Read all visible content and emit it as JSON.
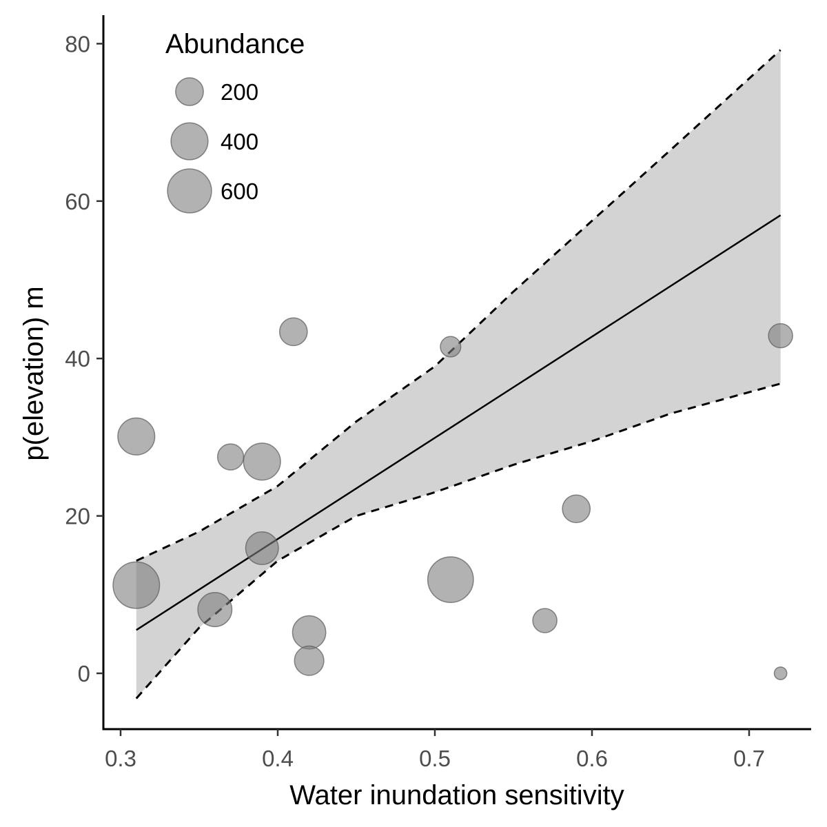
{
  "chart_data": {
    "type": "scatter",
    "xlabel": "Water inundation sensitivity",
    "ylabel": "p(elevation) m",
    "xlim": [
      0.29,
      0.74
    ],
    "ylim": [
      -7,
      84
    ],
    "x_ticks": [
      0.3,
      0.4,
      0.5,
      0.6,
      0.7
    ],
    "x_tick_labels": [
      "0.3",
      "0.4",
      "0.5",
      "0.6",
      "0.7"
    ],
    "y_ticks": [
      0,
      20,
      40,
      60,
      80
    ],
    "y_tick_labels": [
      "0",
      "20",
      "40",
      "60",
      "80"
    ],
    "legend": {
      "title": "Abundance",
      "position": "top-left",
      "entries": [
        {
          "label": "200",
          "size": 200
        },
        {
          "label": "400",
          "size": 400
        },
        {
          "label": "600",
          "size": 600
        }
      ]
    },
    "points": [
      {
        "x": 0.31,
        "y": 30.1,
        "size": 400
      },
      {
        "x": 0.31,
        "y": 11.2,
        "size": 680
      },
      {
        "x": 0.36,
        "y": 8.1,
        "size": 330
      },
      {
        "x": 0.37,
        "y": 27.5,
        "size": 170
      },
      {
        "x": 0.39,
        "y": 26.9,
        "size": 400
      },
      {
        "x": 0.39,
        "y": 15.9,
        "size": 300
      },
      {
        "x": 0.41,
        "y": 43.4,
        "size": 200
      },
      {
        "x": 0.42,
        "y": 5.2,
        "size": 310
      },
      {
        "x": 0.42,
        "y": 1.6,
        "size": 230
      },
      {
        "x": 0.51,
        "y": 41.5,
        "size": 90
      },
      {
        "x": 0.51,
        "y": 11.9,
        "size": 650
      },
      {
        "x": 0.57,
        "y": 6.7,
        "size": 140
      },
      {
        "x": 0.59,
        "y": 20.9,
        "size": 200
      },
      {
        "x": 0.72,
        "y": 42.9,
        "size": 140
      },
      {
        "x": 0.72,
        "y": 0.0,
        "size": 20
      }
    ],
    "fit_line": {
      "x": [
        0.31,
        0.72
      ],
      "y": [
        5.5,
        58.2
      ]
    },
    "confidence_band": {
      "x": [
        0.31,
        0.35,
        0.4,
        0.45,
        0.5,
        0.55,
        0.6,
        0.65,
        0.72
      ],
      "upper": [
        14.3,
        18.0,
        23.8,
        32.0,
        39.0,
        48.5,
        57.5,
        66.5,
        79.2
      ],
      "lower": [
        -3.2,
        5.8,
        14.3,
        20.0,
        23.0,
        26.5,
        29.5,
        33.0,
        36.8
      ]
    },
    "colors": {
      "point_fill": "#7f7f7f",
      "point_stroke": "#595959",
      "band_fill": "#d3d3d3",
      "line": "#000000"
    }
  }
}
